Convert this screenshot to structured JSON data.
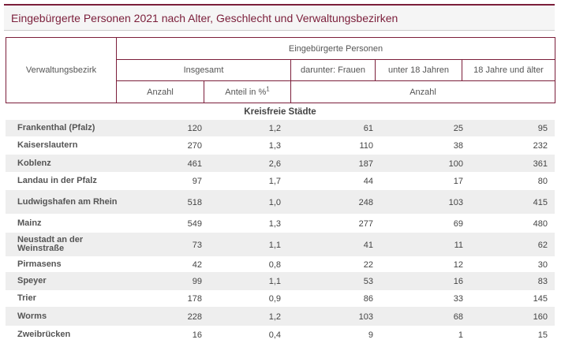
{
  "title": "Eingebürgerte Personen 2021 nach Alter, Geschlecht und Verwaltungsbezirken",
  "header": {
    "col_district": "Verwaltungsbezirk",
    "group_label": "Eingebürgerte Personen",
    "insgesamt": "Insgesamt",
    "frauen": "darunter: Frauen",
    "unter18": "unter 18 Jahren",
    "ab18": "18 Jahre und älter",
    "anzahl": "Anzahl",
    "anteil": "Anteil in %",
    "anteil_footnote": "1",
    "anzahl2": "Anzahl"
  },
  "section": "Kreisfreie Städte",
  "rows": [
    {
      "name": "Frankenthal (Pfalz)",
      "anzahl": "120",
      "anteil": "1,2",
      "frauen": "61",
      "unter18": "25",
      "ab18": "95"
    },
    {
      "name": "Kaiserslautern",
      "anzahl": "270",
      "anteil": "1,3",
      "frauen": "110",
      "unter18": "38",
      "ab18": "232"
    },
    {
      "name": "Koblenz",
      "anzahl": "461",
      "anteil": "2,6",
      "frauen": "187",
      "unter18": "100",
      "ab18": "361"
    },
    {
      "name": "Landau in der Pfalz",
      "anzahl": "97",
      "anteil": "1,7",
      "frauen": "44",
      "unter18": "17",
      "ab18": "80"
    },
    {
      "name": "Ludwigshafen am Rhein",
      "anzahl": "518",
      "anteil": "1,0",
      "frauen": "248",
      "unter18": "103",
      "ab18": "415"
    },
    {
      "name": "Mainz",
      "anzahl": "549",
      "anteil": "1,3",
      "frauen": "277",
      "unter18": "69",
      "ab18": "480"
    },
    {
      "name": "Neustadt an der Weinstraße",
      "anzahl": "73",
      "anteil": "1,1",
      "frauen": "41",
      "unter18": "11",
      "ab18": "62"
    },
    {
      "name": "Pirmasens",
      "anzahl": "42",
      "anteil": "0,8",
      "frauen": "22",
      "unter18": "12",
      "ab18": "30"
    },
    {
      "name": "Speyer",
      "anzahl": "99",
      "anteil": "1,1",
      "frauen": "53",
      "unter18": "16",
      "ab18": "83"
    },
    {
      "name": "Trier",
      "anzahl": "178",
      "anteil": "0,9",
      "frauen": "86",
      "unter18": "33",
      "ab18": "145"
    },
    {
      "name": "Worms",
      "anzahl": "228",
      "anteil": "1,2",
      "frauen": "103",
      "unter18": "68",
      "ab18": "160"
    },
    {
      "name": "Zweibrücken",
      "anzahl": "16",
      "anteil": "0,4",
      "frauen": "9",
      "unter18": "1",
      "ab18": "15"
    }
  ]
}
